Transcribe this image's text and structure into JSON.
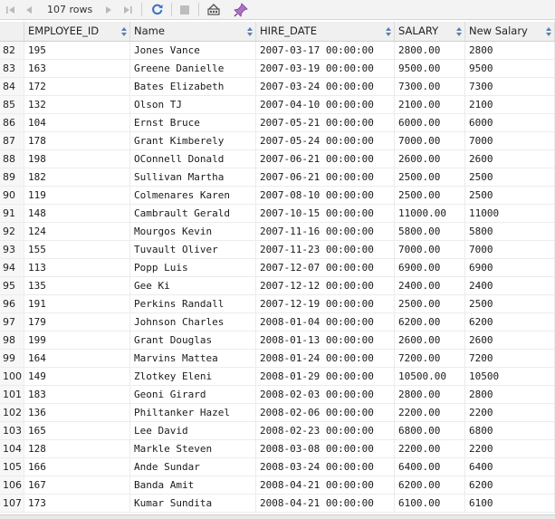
{
  "toolbar": {
    "row_count_label": "107 rows",
    "icons": [
      "first-page-icon",
      "prev-page-icon",
      "next-page-icon",
      "last-page-icon",
      "refresh-icon",
      "stop-icon",
      "export-icon",
      "pin-icon"
    ]
  },
  "grid": {
    "columns": [
      {
        "key": "rownum",
        "label": ""
      },
      {
        "key": "EMPLOYEE_ID",
        "label": "EMPLOYEE_ID"
      },
      {
        "key": "Name",
        "label": "Name"
      },
      {
        "key": "HIRE_DATE",
        "label": "HIRE_DATE"
      },
      {
        "key": "SALARY",
        "label": "SALARY"
      },
      {
        "key": "New_Salary",
        "label": "New Salary"
      }
    ],
    "rows": [
      [
        "82",
        "195",
        "Jones Vance",
        "2007-03-17 00:00:00",
        "2800.00",
        "2800"
      ],
      [
        "83",
        "163",
        "Greene Danielle",
        "2007-03-19 00:00:00",
        "9500.00",
        "9500"
      ],
      [
        "84",
        "172",
        "Bates Elizabeth",
        "2007-03-24 00:00:00",
        "7300.00",
        "7300"
      ],
      [
        "85",
        "132",
        "Olson TJ",
        "2007-04-10 00:00:00",
        "2100.00",
        "2100"
      ],
      [
        "86",
        "104",
        "Ernst Bruce",
        "2007-05-21 00:00:00",
        "6000.00",
        "6000"
      ],
      [
        "87",
        "178",
        "Grant Kimberely",
        "2007-05-24 00:00:00",
        "7000.00",
        "7000"
      ],
      [
        "88",
        "198",
        "OConnell Donald",
        "2007-06-21 00:00:00",
        "2600.00",
        "2600"
      ],
      [
        "89",
        "182",
        "Sullivan Martha",
        "2007-06-21 00:00:00",
        "2500.00",
        "2500"
      ],
      [
        "90",
        "119",
        "Colmenares Karen",
        "2007-08-10 00:00:00",
        "2500.00",
        "2500"
      ],
      [
        "91",
        "148",
        "Cambrault Gerald",
        "2007-10-15 00:00:00",
        "11000.00",
        "11000"
      ],
      [
        "92",
        "124",
        "Mourgos Kevin",
        "2007-11-16 00:00:00",
        "5800.00",
        "5800"
      ],
      [
        "93",
        "155",
        "Tuvault Oliver",
        "2007-11-23 00:00:00",
        "7000.00",
        "7000"
      ],
      [
        "94",
        "113",
        "Popp Luis",
        "2007-12-07 00:00:00",
        "6900.00",
        "6900"
      ],
      [
        "95",
        "135",
        "Gee Ki",
        "2007-12-12 00:00:00",
        "2400.00",
        "2400"
      ],
      [
        "96",
        "191",
        "Perkins Randall",
        "2007-12-19 00:00:00",
        "2500.00",
        "2500"
      ],
      [
        "97",
        "179",
        "Johnson Charles",
        "2008-01-04 00:00:00",
        "6200.00",
        "6200"
      ],
      [
        "98",
        "199",
        "Grant Douglas",
        "2008-01-13 00:00:00",
        "2600.00",
        "2600"
      ],
      [
        "99",
        "164",
        "Marvins Mattea",
        "2008-01-24 00:00:00",
        "7200.00",
        "7200"
      ],
      [
        "100",
        "149",
        "Zlotkey Eleni",
        "2008-01-29 00:00:00",
        "10500.00",
        "10500"
      ],
      [
        "101",
        "183",
        "Geoni Girard",
        "2008-02-03 00:00:00",
        "2800.00",
        "2800"
      ],
      [
        "102",
        "136",
        "Philtanker Hazel",
        "2008-02-06 00:00:00",
        "2200.00",
        "2200"
      ],
      [
        "103",
        "165",
        "Lee David",
        "2008-02-23 00:00:00",
        "6800.00",
        "6800"
      ],
      [
        "104",
        "128",
        "Markle Steven",
        "2008-03-08 00:00:00",
        "2200.00",
        "2200"
      ],
      [
        "105",
        "166",
        "Ande Sundar",
        "2008-03-24 00:00:00",
        "6400.00",
        "6400"
      ],
      [
        "106",
        "167",
        "Banda Amit",
        "2008-04-21 00:00:00",
        "6200.00",
        "6200"
      ],
      [
        "107",
        "173",
        "Kumar Sundita",
        "2008-04-21 00:00:00",
        "6100.00",
        "6100"
      ]
    ]
  }
}
